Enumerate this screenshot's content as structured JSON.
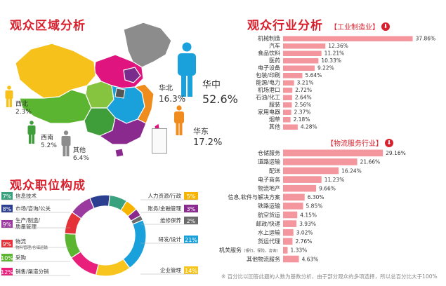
{
  "region": {
    "title": "观众区域分析",
    "labels": [
      {
        "id": "xibei",
        "name": "西北",
        "value": "2.3%"
      },
      {
        "id": "xinan",
        "name": "西南",
        "value": "5.2%"
      },
      {
        "id": "qita",
        "name": "其他",
        "value": "6.4%"
      },
      {
        "id": "huabei",
        "name": "华北",
        "value": "16.3%"
      },
      {
        "id": "huazhong",
        "name": "华中",
        "value": "52.6%"
      },
      {
        "id": "huadong",
        "name": "华东",
        "value": "17.2%"
      }
    ]
  },
  "position": {
    "title": "观众职位构成"
  },
  "industry": {
    "title": "观众行业分析",
    "filter1": "【工业制造业】",
    "filter2": "【物流服务行业】"
  },
  "footnote": "※ 百分比以回答此题的人数为基数分析，由于部分观众的多项选择，所以总百分比大于100%",
  "colors": {
    "title": "#d8212e",
    "bar": "#f4969e"
  },
  "chart_data": [
    {
      "type": "bar",
      "title": "工业制造业",
      "orientation": "horizontal",
      "categories": [
        "机械制造",
        "汽车",
        "食品饮料",
        "医药",
        "电子设备",
        "包装/印刷",
        "能源/电力",
        "机场港口",
        "石油/化工",
        "服装",
        "家用电器",
        "烟草",
        "其他"
      ],
      "values": [
        37.86,
        12.36,
        11.21,
        10.33,
        9.22,
        5.64,
        3.21,
        2.72,
        2.64,
        2.56,
        2.37,
        2.18,
        4.28
      ],
      "value_labels": [
        "37.86%",
        "12.36%",
        "11.21%",
        "10.33%",
        "9.22%",
        "5.64%",
        "3.21%",
        "2.72%",
        "2.64%",
        "2.56%",
        "2.37%",
        "2.18%",
        "4.28%"
      ],
      "xlim": [
        0,
        40
      ]
    },
    {
      "type": "bar",
      "title": "物流服务行业",
      "orientation": "horizontal",
      "categories": [
        "仓储服务",
        "道路运输",
        "配送",
        "电子商务",
        "物流地产",
        "信息,软件与解决方案",
        "铁路运输",
        "航空货运",
        "邮政/快递",
        "水上运输",
        "货运代理",
        "机关服务",
        "其他物流服务"
      ],
      "category_notes": [
        "",
        "",
        "",
        "",
        "",
        "",
        "",
        "",
        "",
        "",
        "",
        "（银行，保险，咨询）",
        ""
      ],
      "values": [
        29.16,
        21.66,
        16.24,
        11.23,
        9.66,
        6.3,
        5.85,
        4.15,
        3.93,
        3.02,
        2.76,
        1.33,
        4.63
      ],
      "value_labels": [
        "29.16%",
        "21.66%",
        "16.24%",
        "11.23%",
        "9.66%",
        "6.30%",
        "5.85%",
        "4.15%",
        "3.93%",
        "3.02%",
        "2.76%",
        "1.33%",
        "4.63%"
      ],
      "xlim": [
        0,
        40
      ]
    },
    {
      "type": "pie",
      "title": "观众职位构成",
      "donut": true,
      "slices": [
        {
          "label": "人力资源/行政",
          "value": 5,
          "value_label": "5%",
          "color": "#f7b500"
        },
        {
          "label": "账务/金融管理",
          "value": 3,
          "value_label": "3%",
          "color": "#8b2a8e"
        },
        {
          "label": "维修保养",
          "value": 2,
          "value_label": "2%",
          "color": "#6b6b6b"
        },
        {
          "label": "研发/设计",
          "value": 21,
          "value_label": "21%",
          "color": "#1aa1dc"
        },
        {
          "label": "企业管理",
          "value": 14,
          "value_label": "14%",
          "color": "#f7c51e"
        },
        {
          "label": "销售/渠道分销",
          "value": 12,
          "value_label": "12%",
          "color": "#e8207c"
        },
        {
          "label": "采购",
          "value": 10,
          "value_label": "10%",
          "color": "#5cb531"
        },
        {
          "label": "物流",
          "sublabel": "物料管理/仓储运输",
          "value": 9,
          "value_label": "9%",
          "color": "#e53238"
        },
        {
          "label": "生产/制造/质量管理",
          "value": 9,
          "value_label": "9%",
          "color": "#9b3a9e"
        },
        {
          "label": "市场/咨询/公关",
          "value": 8,
          "value_label": "8%",
          "color": "#2c3e8f"
        },
        {
          "label": "信息技术",
          "value": 7,
          "value_label": "7%",
          "color": "#3aa17e"
        }
      ]
    }
  ]
}
